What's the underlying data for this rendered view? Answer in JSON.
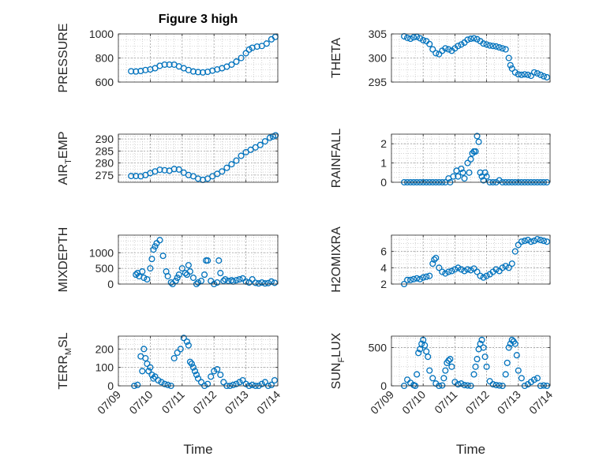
{
  "figure": {
    "title": "Figure 3 high"
  },
  "colors": {
    "marker": "#0072BD",
    "axis": "#262626",
    "grid": "#b8b8b8",
    "background": "#ffffff"
  },
  "chart_data": [
    {
      "type": "scatter",
      "ylabel": "PRESSURE",
      "xlabel": "",
      "xlim": [
        "07/09",
        "07/14"
      ],
      "ylim": [
        600,
        1000
      ],
      "yticks": [
        600,
        800,
        1000
      ],
      "xticks": [
        "07/09",
        "07/10",
        "07/11",
        "07/12",
        "07/13",
        "07/14"
      ],
      "show_xticklabels": false,
      "grid": true,
      "x": [
        9.4,
        9.55,
        9.7,
        9.85,
        10.0,
        10.15,
        10.3,
        10.45,
        10.6,
        10.75,
        10.9,
        11.05,
        11.2,
        11.35,
        11.5,
        11.65,
        11.8,
        11.95,
        12.1,
        12.25,
        12.4,
        12.55,
        12.7,
        12.85,
        13.0,
        13.1,
        13.2,
        13.35,
        13.5,
        13.65,
        13.8,
        13.92
      ],
      "y": [
        690,
        688,
        692,
        700,
        705,
        715,
        735,
        745,
        745,
        745,
        730,
        715,
        700,
        688,
        683,
        680,
        685,
        695,
        705,
        715,
        728,
        745,
        770,
        800,
        840,
        870,
        885,
        895,
        900,
        920,
        955,
        975
      ]
    },
    {
      "type": "scatter",
      "ylabel": "THETA",
      "xlabel": "",
      "xlim": [
        "07/09",
        "07/14"
      ],
      "ylim": [
        295,
        305
      ],
      "yticks": [
        295,
        300,
        305
      ],
      "xticks": [
        "07/09",
        "07/10",
        "07/11",
        "07/12",
        "07/13",
        "07/14"
      ],
      "show_xticklabels": false,
      "grid": true,
      "x": [
        9.4,
        9.5,
        9.6,
        9.7,
        9.8,
        9.9,
        10.0,
        10.1,
        10.2,
        10.3,
        10.4,
        10.5,
        10.6,
        10.7,
        10.8,
        10.9,
        11.0,
        11.1,
        11.2,
        11.3,
        11.4,
        11.5,
        11.6,
        11.7,
        11.8,
        11.9,
        12.0,
        12.1,
        12.2,
        12.3,
        12.4,
        12.5,
        12.6,
        12.7,
        12.75,
        12.8,
        12.9,
        13.0,
        13.1,
        13.2,
        13.3,
        13.4,
        13.5,
        13.6,
        13.7,
        13.8,
        13.9
      ],
      "y": [
        304.5,
        304.2,
        304.0,
        304.3,
        304.4,
        304.1,
        303.7,
        303.5,
        302.9,
        301.8,
        301.0,
        300.8,
        301.5,
        302.0,
        301.8,
        301.5,
        302.0,
        302.5,
        302.8,
        303.2,
        303.8,
        304.0,
        304.1,
        303.9,
        303.5,
        303.0,
        302.8,
        302.6,
        302.5,
        302.4,
        302.2,
        302.0,
        301.8,
        300.0,
        298.5,
        297.8,
        297.0,
        296.6,
        296.5,
        296.6,
        296.5,
        296.3,
        297.0,
        296.8,
        296.5,
        296.2,
        296.0
      ]
    },
    {
      "type": "scatter",
      "ylabel": "AIR_TEMP",
      "xlabel": "",
      "xlim": [
        "07/09",
        "07/14"
      ],
      "ylim": [
        272,
        292
      ],
      "yticks": [
        275,
        280,
        285,
        290
      ],
      "xticks": [
        "07/09",
        "07/10",
        "07/11",
        "07/12",
        "07/13",
        "07/14"
      ],
      "show_xticklabels": false,
      "grid": true,
      "x": [
        9.4,
        9.55,
        9.7,
        9.85,
        10.0,
        10.15,
        10.3,
        10.45,
        10.6,
        10.75,
        10.9,
        11.05,
        11.2,
        11.35,
        11.5,
        11.65,
        11.8,
        11.95,
        12.1,
        12.25,
        12.4,
        12.55,
        12.7,
        12.85,
        13.0,
        13.15,
        13.3,
        13.45,
        13.6,
        13.75,
        13.85,
        13.93
      ],
      "y": [
        274.6,
        274.6,
        274.5,
        275.0,
        275.8,
        276.5,
        277.2,
        277.0,
        276.8,
        277.5,
        277.3,
        276.0,
        275.0,
        274.5,
        273.5,
        273.0,
        273.5,
        274.5,
        275.5,
        276.5,
        278.0,
        279.5,
        281.0,
        283.0,
        284.5,
        285.5,
        286.5,
        287.5,
        289.0,
        290.5,
        291.0,
        291.5
      ]
    },
    {
      "type": "scatter",
      "ylabel": "RAINFALL",
      "xlabel": "",
      "xlim": [
        "07/09",
        "07/14"
      ],
      "ylim": [
        0,
        2.5
      ],
      "yticks": [
        0,
        1,
        2
      ],
      "xticks": [
        "07/09",
        "07/10",
        "07/11",
        "07/12",
        "07/13",
        "07/14"
      ],
      "show_xticklabels": false,
      "grid": true,
      "x": [
        9.4,
        9.5,
        9.6,
        9.7,
        9.8,
        9.9,
        10.0,
        10.1,
        10.2,
        10.3,
        10.4,
        10.5,
        10.6,
        10.7,
        10.8,
        10.85,
        10.95,
        11.05,
        11.1,
        11.2,
        11.25,
        11.3,
        11.4,
        11.45,
        11.5,
        11.55,
        11.6,
        11.65,
        11.7,
        11.75,
        11.8,
        11.85,
        11.9,
        11.95,
        12.0,
        12.1,
        12.2,
        12.3,
        12.4,
        12.5,
        12.6,
        12.7,
        12.8,
        12.9,
        13.0,
        13.1,
        13.2,
        13.3,
        13.4,
        13.5,
        13.6,
        13.7,
        13.8,
        13.9
      ],
      "y": [
        0,
        0,
        0,
        0,
        0,
        0,
        0,
        0,
        0,
        0,
        0,
        0,
        0,
        0,
        0.2,
        0,
        0.3,
        0.6,
        0.3,
        0.7,
        0.5,
        0.2,
        1.0,
        0.5,
        1.2,
        1.5,
        1.6,
        1.6,
        2.4,
        2.1,
        0.5,
        0.3,
        0.1,
        0.5,
        0.3,
        0,
        0,
        0,
        0.1,
        0,
        0,
        0,
        0,
        0,
        0,
        0,
        0,
        0,
        0,
        0,
        0,
        0,
        0,
        0
      ]
    },
    {
      "type": "scatter",
      "ylabel": "MIXDEPTH",
      "xlabel": "",
      "xlim": [
        "07/09",
        "07/14"
      ],
      "ylim": [
        0,
        1560
      ],
      "yticks": [
        0,
        500,
        1000
      ],
      "xticks": [
        "07/09",
        "07/10",
        "07/11",
        "07/12",
        "07/13",
        "07/14"
      ],
      "show_xticklabels": false,
      "grid": true,
      "x": [
        9.55,
        9.6,
        9.65,
        9.75,
        9.8,
        9.9,
        10.0,
        10.05,
        10.1,
        10.15,
        10.2,
        10.3,
        10.4,
        10.5,
        10.55,
        10.65,
        10.7,
        10.8,
        10.85,
        10.9,
        11.0,
        11.1,
        11.15,
        11.2,
        11.25,
        11.35,
        11.45,
        11.5,
        11.6,
        11.7,
        11.75,
        11.8,
        11.9,
        12.0,
        12.1,
        12.15,
        12.2,
        12.3,
        12.35,
        12.45,
        12.55,
        12.6,
        12.7,
        12.8,
        12.9,
        13.0,
        13.1,
        13.2,
        13.3,
        13.4,
        13.5,
        13.6,
        13.7,
        13.8,
        13.9
      ],
      "y": [
        300,
        350,
        250,
        400,
        200,
        150,
        500,
        800,
        1100,
        1200,
        1300,
        1400,
        900,
        400,
        250,
        50,
        0,
        100,
        200,
        300,
        500,
        350,
        300,
        600,
        400,
        200,
        0,
        50,
        100,
        300,
        750,
        750,
        100,
        0,
        50,
        750,
        350,
        100,
        150,
        100,
        120,
        80,
        120,
        150,
        180,
        80,
        50,
        150,
        40,
        20,
        50,
        20,
        30,
        80,
        40
      ]
    },
    {
      "type": "scatter",
      "ylabel": "H2OMIXRA",
      "xlabel": "",
      "xlim": [
        "07/09",
        "07/14"
      ],
      "ylim": [
        2,
        8
      ],
      "yticks": [
        2,
        4,
        6
      ],
      "xticks": [
        "07/09",
        "07/10",
        "07/11",
        "07/12",
        "07/13",
        "07/14"
      ],
      "show_xticklabels": false,
      "grid": true,
      "x": [
        9.4,
        9.5,
        9.6,
        9.7,
        9.8,
        9.9,
        10.0,
        10.1,
        10.2,
        10.3,
        10.35,
        10.4,
        10.5,
        10.6,
        10.7,
        10.8,
        10.9,
        11.0,
        11.1,
        11.2,
        11.3,
        11.4,
        11.5,
        11.6,
        11.7,
        11.8,
        11.9,
        12.0,
        12.1,
        12.2,
        12.3,
        12.4,
        12.5,
        12.6,
        12.7,
        12.8,
        12.9,
        13.0,
        13.1,
        13.2,
        13.3,
        13.4,
        13.5,
        13.6,
        13.7,
        13.8,
        13.9
      ],
      "y": [
        2.0,
        2.5,
        2.5,
        2.6,
        2.7,
        2.6,
        2.8,
        2.9,
        3.0,
        4.5,
        5.0,
        5.2,
        4.0,
        3.5,
        3.3,
        3.5,
        3.6,
        3.8,
        4.0,
        3.8,
        3.6,
        3.8,
        3.7,
        3.9,
        3.5,
        3.0,
        2.8,
        3.0,
        3.2,
        3.5,
        3.8,
        3.6,
        4.0,
        4.2,
        4.0,
        4.5,
        6.0,
        6.8,
        7.2,
        7.3,
        7.4,
        7.2,
        7.3,
        7.5,
        7.4,
        7.3,
        7.2
      ]
    },
    {
      "type": "scatter",
      "ylabel": "TERR_MSL",
      "xlabel": "Time",
      "xlim": [
        "07/09",
        "07/14"
      ],
      "ylim": [
        0,
        270
      ],
      "yticks": [
        0,
        100,
        200
      ],
      "xticks": [
        "07/09",
        "07/10",
        "07/11",
        "07/12",
        "07/13",
        "07/14"
      ],
      "show_xticklabels": true,
      "grid": true,
      "x": [
        9.5,
        9.6,
        9.7,
        9.75,
        9.8,
        9.85,
        9.9,
        9.95,
        10.0,
        10.05,
        10.1,
        10.15,
        10.25,
        10.35,
        10.45,
        10.55,
        10.65,
        10.75,
        10.85,
        10.95,
        11.05,
        11.15,
        11.2,
        11.25,
        11.3,
        11.35,
        11.4,
        11.45,
        11.5,
        11.6,
        11.7,
        11.8,
        11.9,
        12.0,
        12.1,
        12.2,
        12.3,
        12.4,
        12.5,
        12.6,
        12.7,
        12.8,
        12.9,
        13.0,
        13.1,
        13.2,
        13.3,
        13.4,
        13.5,
        13.6,
        13.7,
        13.8,
        13.9
      ],
      "y": [
        0,
        5,
        160,
        80,
        200,
        150,
        120,
        80,
        100,
        60,
        40,
        50,
        30,
        20,
        10,
        5,
        0,
        150,
        180,
        200,
        260,
        240,
        220,
        130,
        120,
        100,
        80,
        60,
        40,
        20,
        0,
        10,
        50,
        80,
        90,
        60,
        20,
        0,
        0,
        5,
        10,
        20,
        30,
        10,
        0,
        5,
        0,
        0,
        10,
        20,
        0,
        5,
        30
      ]
    },
    {
      "type": "scatter",
      "ylabel": "SUN_FLUX",
      "xlabel": "Time",
      "xlim": [
        "07/09",
        "07/14"
      ],
      "ylim": [
        0,
        650
      ],
      "yticks": [
        0,
        500
      ],
      "xticks": [
        "07/09",
        "07/10",
        "07/11",
        "07/12",
        "07/13",
        "07/14"
      ],
      "show_xticklabels": true,
      "grid": true,
      "x": [
        9.4,
        9.5,
        9.6,
        9.7,
        9.75,
        9.8,
        9.85,
        9.9,
        9.95,
        10.0,
        10.05,
        10.1,
        10.15,
        10.2,
        10.3,
        10.4,
        10.5,
        10.6,
        10.65,
        10.7,
        10.75,
        10.8,
        10.85,
        10.9,
        11.0,
        11.1,
        11.2,
        11.3,
        11.4,
        11.5,
        11.6,
        11.65,
        11.7,
        11.75,
        11.8,
        11.85,
        11.9,
        11.95,
        12.0,
        12.1,
        12.2,
        12.3,
        12.4,
        12.5,
        12.6,
        12.65,
        12.7,
        12.75,
        12.8,
        12.85,
        12.9,
        12.95,
        13.0,
        13.1,
        13.2,
        13.3,
        13.4,
        13.5,
        13.6,
        13.7,
        13.8,
        13.9
      ],
      "y": [
        0,
        80,
        40,
        10,
        0,
        150,
        430,
        480,
        550,
        600,
        530,
        450,
        380,
        200,
        100,
        30,
        0,
        5,
        100,
        200,
        300,
        330,
        350,
        250,
        50,
        20,
        30,
        10,
        5,
        0,
        150,
        250,
        350,
        480,
        550,
        600,
        500,
        380,
        250,
        60,
        20,
        10,
        5,
        0,
        150,
        300,
        500,
        550,
        600,
        580,
        550,
        400,
        200,
        100,
        0,
        20,
        50,
        80,
        100,
        0,
        5,
        0
      ]
    }
  ]
}
